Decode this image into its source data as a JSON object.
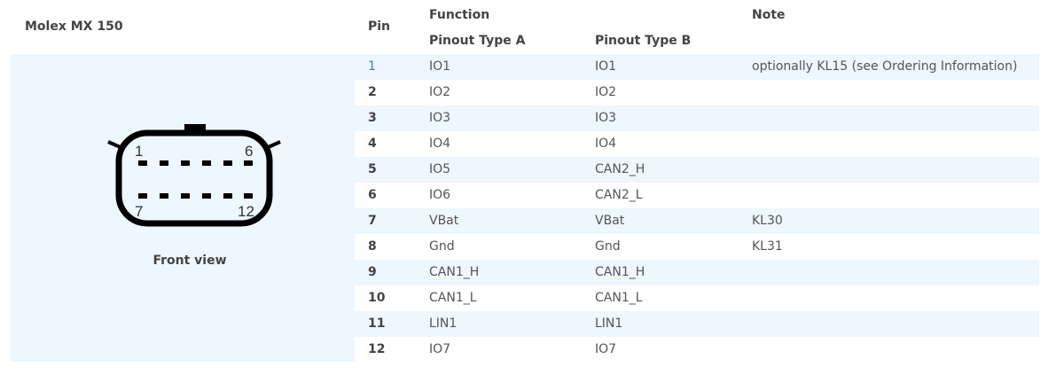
{
  "connector": {
    "title": "Molex MX 150",
    "caption": "Front view",
    "pin_labels": {
      "top_left": "1",
      "top_right": "6",
      "bottom_left": "7",
      "bottom_right": "12"
    }
  },
  "headers": {
    "pin": "Pin",
    "function": "Function",
    "type_a": "Pinout Type A",
    "type_b": "Pinout Type B",
    "note": "Note"
  },
  "rows": [
    {
      "pin": "1",
      "a": "IO1",
      "b": "IO1",
      "note": "optionally KL15 (see Ordering Information)"
    },
    {
      "pin": "2",
      "a": "IO2",
      "b": "IO2",
      "note": ""
    },
    {
      "pin": "3",
      "a": "IO3",
      "b": "IO3",
      "note": ""
    },
    {
      "pin": "4",
      "a": "IO4",
      "b": "IO4",
      "note": ""
    },
    {
      "pin": "5",
      "a": "IO5",
      "b": "CAN2_H",
      "note": ""
    },
    {
      "pin": "6",
      "a": "IO6",
      "b": "CAN2_L",
      "note": ""
    },
    {
      "pin": "7",
      "a": "VBat",
      "b": "VBat",
      "note": "KL30"
    },
    {
      "pin": "8",
      "a": "Gnd",
      "b": "Gnd",
      "note": "KL31"
    },
    {
      "pin": "9",
      "a": "CAN1_H",
      "b": "CAN1_H",
      "note": ""
    },
    {
      "pin": "10",
      "a": "CAN1_L",
      "b": "CAN1_L",
      "note": ""
    },
    {
      "pin": "11",
      "a": "LIN1",
      "b": "LIN1",
      "note": ""
    },
    {
      "pin": "12",
      "a": "IO7",
      "b": "IO7",
      "note": ""
    }
  ]
}
